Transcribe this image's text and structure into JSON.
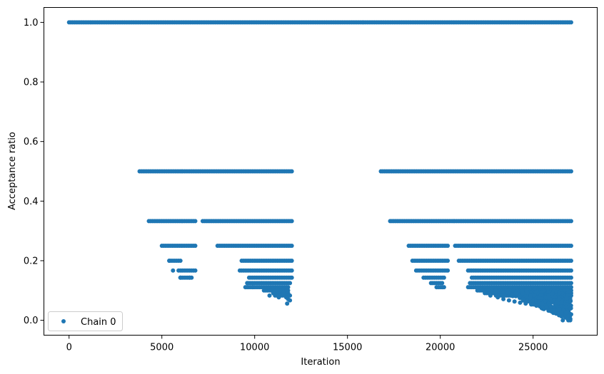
{
  "chart_data": {
    "type": "scatter",
    "title": "",
    "xlabel": "Iteration",
    "ylabel": "Acceptance ratio",
    "xlim": [
      -1355,
      28455
    ],
    "ylim": [
      -0.05,
      1.05
    ],
    "xticks": [
      0,
      5000,
      10000,
      15000,
      20000,
      25000
    ],
    "yticks": [
      0.0,
      0.2,
      0.4,
      0.6,
      0.8,
      1.0
    ],
    "xtick_labels": [
      "0",
      "5000",
      "10000",
      "15000",
      "20000",
      "25000"
    ],
    "ytick_labels": [
      "0.0",
      "0.2",
      "0.4",
      "0.6",
      "0.8",
      "1.0"
    ],
    "grid": false,
    "legend_position": "lower-left",
    "series": [
      {
        "name": "Chain 0",
        "color": "#1f77b4",
        "marker": "circle",
        "segments": [
          {
            "y": 1.0,
            "x_start": 0,
            "x_end": 27050
          },
          {
            "y": 0.5,
            "x_start": 3800,
            "x_end": 12000
          },
          {
            "y": 0.5,
            "x_start": 16800,
            "x_end": 27050
          },
          {
            "y": 0.333,
            "x_start": 4300,
            "x_end": 6800
          },
          {
            "y": 0.333,
            "x_start": 7200,
            "x_end": 12000
          },
          {
            "y": 0.333,
            "x_start": 17300,
            "x_end": 27050
          },
          {
            "y": 0.25,
            "x_start": 5000,
            "x_end": 6800
          },
          {
            "y": 0.25,
            "x_start": 8000,
            "x_end": 12000
          },
          {
            "y": 0.25,
            "x_start": 18300,
            "x_end": 20400
          },
          {
            "y": 0.25,
            "x_start": 20800,
            "x_end": 27050
          },
          {
            "y": 0.2,
            "x_start": 5400,
            "x_end": 6000
          },
          {
            "y": 0.2,
            "x_start": 9300,
            "x_end": 12000
          },
          {
            "y": 0.2,
            "x_start": 18500,
            "x_end": 20400
          },
          {
            "y": 0.2,
            "x_start": 21000,
            "x_end": 27050
          },
          {
            "y": 0.167,
            "x_start": 5900,
            "x_end": 6800
          },
          {
            "y": 0.167,
            "x_start": 9200,
            "x_end": 12000
          },
          {
            "y": 0.167,
            "x_start": 18700,
            "x_end": 20400
          },
          {
            "y": 0.167,
            "x_start": 21500,
            "x_end": 27050
          },
          {
            "y": 0.143,
            "x_start": 6000,
            "x_end": 6600
          },
          {
            "y": 0.143,
            "x_start": 9700,
            "x_end": 12000
          },
          {
            "y": 0.143,
            "x_start": 19200,
            "x_end": 20200
          },
          {
            "y": 0.143,
            "x_start": 21700,
            "x_end": 27050
          },
          {
            "y": 0.125,
            "x_start": 9600,
            "x_end": 11900
          },
          {
            "y": 0.125,
            "x_start": 19500,
            "x_end": 20100
          },
          {
            "y": 0.125,
            "x_start": 21700,
            "x_end": 27050
          },
          {
            "y": 0.111,
            "x_start": 9500,
            "x_end": 11800
          },
          {
            "y": 0.111,
            "x_start": 19800,
            "x_end": 20200
          },
          {
            "y": 0.111,
            "x_start": 21600,
            "x_end": 27050
          },
          {
            "y": 0.1,
            "x_start": 10500,
            "x_end": 11800
          },
          {
            "y": 0.1,
            "x_start": 22100,
            "x_end": 27050
          },
          {
            "y": 0.091,
            "x_start": 11000,
            "x_end": 11800
          },
          {
            "y": 0.091,
            "x_start": 22500,
            "x_end": 27050
          },
          {
            "y": 0.083,
            "x_start": 11100,
            "x_end": 11900
          },
          {
            "y": 0.083,
            "x_start": 23000,
            "x_end": 27050
          }
        ],
        "points": [
          {
            "x": 11700,
            "y": 0.077
          },
          {
            "x": 11800,
            "y": 0.071
          },
          {
            "x": 11900,
            "y": 0.067
          },
          {
            "x": 11750,
            "y": 0.056
          },
          {
            "x": 11550,
            "y": 0.091
          },
          {
            "x": 11300,
            "y": 0.077
          },
          {
            "x": 10800,
            "y": 0.083
          },
          {
            "x": 9900,
            "y": 0.111
          },
          {
            "x": 9600,
            "y": 0.125
          },
          {
            "x": 6000,
            "y": 0.143
          },
          {
            "x": 6500,
            "y": 0.143
          },
          {
            "x": 5600,
            "y": 0.167
          },
          {
            "x": 5400,
            "y": 0.2
          },
          {
            "x": 20100,
            "y": 0.111
          },
          {
            "x": 19100,
            "y": 0.143
          },
          {
            "x": 21500,
            "y": 0.111
          },
          {
            "x": 21600,
            "y": 0.125
          },
          {
            "x": 22000,
            "y": 0.1
          },
          {
            "x": 22400,
            "y": 0.091
          },
          {
            "x": 22700,
            "y": 0.083
          },
          {
            "x": 23100,
            "y": 0.077
          },
          {
            "x": 23400,
            "y": 0.071
          },
          {
            "x": 23700,
            "y": 0.067
          },
          {
            "x": 24000,
            "y": 0.063
          },
          {
            "x": 24300,
            "y": 0.059
          },
          {
            "x": 24600,
            "y": 0.056
          },
          {
            "x": 24900,
            "y": 0.053
          },
          {
            "x": 25200,
            "y": 0.05
          },
          {
            "x": 25500,
            "y": 0.045
          },
          {
            "x": 25800,
            "y": 0.04
          },
          {
            "x": 26100,
            "y": 0.036
          },
          {
            "x": 26300,
            "y": 0.029
          },
          {
            "x": 26500,
            "y": 0.024
          },
          {
            "x": 26600,
            "y": 0.0
          },
          {
            "x": 26900,
            "y": 0.0
          },
          {
            "x": 27000,
            "y": 0.0
          },
          {
            "x": 26950,
            "y": 0.016
          },
          {
            "x": 27050,
            "y": 0.02
          }
        ],
        "dense_region": {
          "x_start": 23500,
          "x_end": 27050,
          "y_min": 0.0,
          "y_max": 0.1
        }
      }
    ]
  }
}
